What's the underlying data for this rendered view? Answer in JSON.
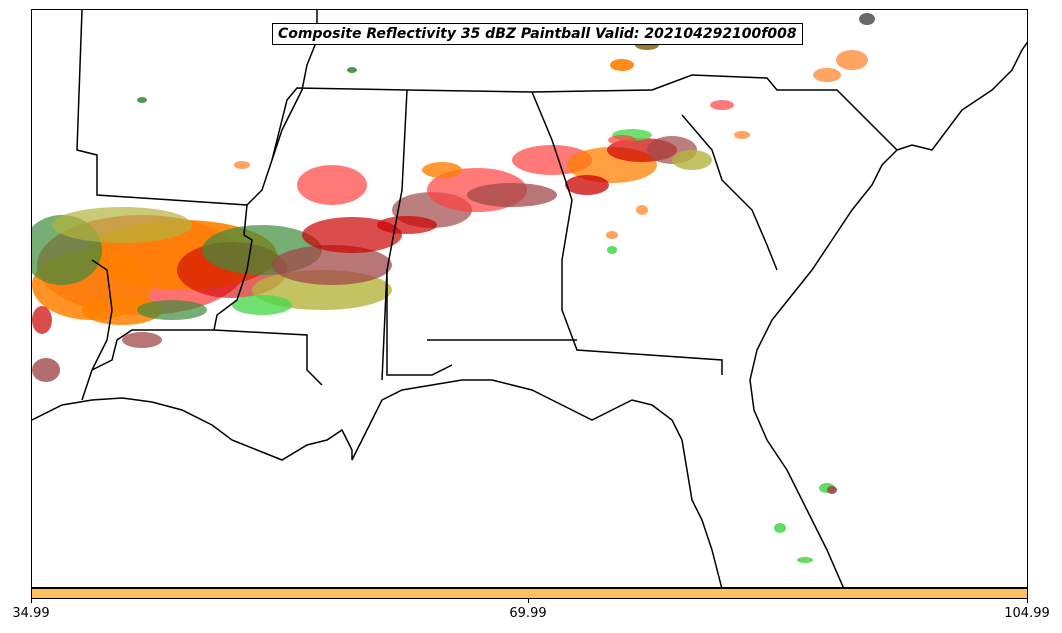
{
  "title": "Composite Reflectivity 35 dBZ Paintball Valid: 202104292100f008",
  "colorbar": {
    "color": "#ffc060",
    "ticks": [
      "34.99",
      "69.99",
      "104.99"
    ]
  },
  "map": {
    "region": "Southeastern United States",
    "member_colors": [
      "#ff4040",
      "#cc0000",
      "#ff8000",
      "#ff9a50",
      "#a04848",
      "#4cd94c",
      "#3c8c3c",
      "#b4b43c",
      "#8c6c1c",
      "#5a5a5a"
    ]
  }
}
